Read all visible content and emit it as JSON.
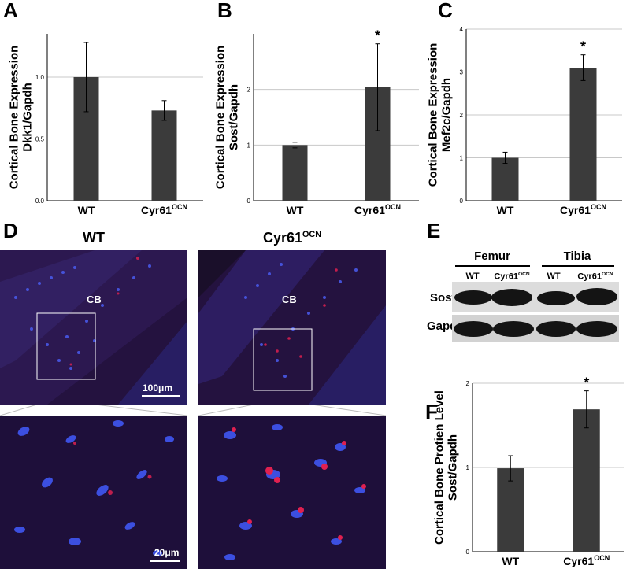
{
  "panels": {
    "A": "A",
    "B": "B",
    "C": "C",
    "D": "D",
    "E": "E",
    "F": "F"
  },
  "chart_data": [
    {
      "id": "A",
      "type": "bar",
      "categories": [
        "WT",
        "Cyr61OCN"
      ],
      "values": [
        1.0,
        0.73
      ],
      "errors": [
        0.28,
        0.08
      ],
      "ylabel": "Cortical Bone Expression\nDkk1/Gapdh",
      "ylim": [
        0,
        1.35
      ],
      "yticks": [
        "0.0",
        "0.5",
        "1.0"
      ],
      "ytick_values": [
        0,
        0.5,
        1.0
      ],
      "significance": [
        null,
        null
      ],
      "grid": true
    },
    {
      "id": "B",
      "type": "bar",
      "categories": [
        "WT",
        "Cyr61OCN"
      ],
      "values": [
        1.0,
        2.04
      ],
      "errors": [
        0.05,
        0.78
      ],
      "ylabel": "Cortical Bone Expression\nSost/Gapdh",
      "ylim": [
        0,
        3.0
      ],
      "yticks": [
        "0",
        "1",
        "2"
      ],
      "ytick_values": [
        0,
        1,
        2
      ],
      "significance": [
        null,
        "*"
      ],
      "grid": true
    },
    {
      "id": "C",
      "type": "bar",
      "categories": [
        "WT",
        "Cyr61OCN"
      ],
      "values": [
        1.0,
        3.1
      ],
      "errors": [
        0.13,
        0.3
      ],
      "ylabel": "Cortical Bone Expression\nMef2c/Gapdh",
      "ylim": [
        0,
        4
      ],
      "yticks": [
        "0",
        "1",
        "2",
        "3",
        "4"
      ],
      "ytick_values": [
        0,
        1,
        2,
        3,
        4
      ],
      "significance": [
        null,
        "*"
      ],
      "grid": true
    },
    {
      "id": "F",
      "type": "bar",
      "categories": [
        "WT",
        "Cyr61OCN"
      ],
      "values": [
        0.99,
        1.69
      ],
      "errors": [
        0.15,
        0.22
      ],
      "ylabel": "Cortical Bone Protien Level\nSost/Gapdh",
      "ylim": [
        0,
        2
      ],
      "yticks": [
        "0",
        "1",
        "2"
      ],
      "ytick_values": [
        0,
        1,
        2
      ],
      "significance": [
        null,
        "*"
      ],
      "grid": true
    }
  ],
  "labels": {
    "wt": "WT",
    "cyr_base": "Cyr61",
    "cyr_sup": "OCN"
  },
  "micrographs": {
    "col_wt": "WT",
    "cb": "CB",
    "scale_top": "100μm",
    "scale_bottom": "20μm"
  },
  "western": {
    "femur": "Femur",
    "tibia": "Tibia",
    "row_sost": "Sost",
    "row_gapdh": "Gapdh"
  },
  "colors": {
    "bar": "#3b3b3b",
    "grid": "#c8c8c8",
    "fluor_bg": "#1e0f3a",
    "nuclei": "#3c4fe0",
    "sost": "#e02040"
  }
}
